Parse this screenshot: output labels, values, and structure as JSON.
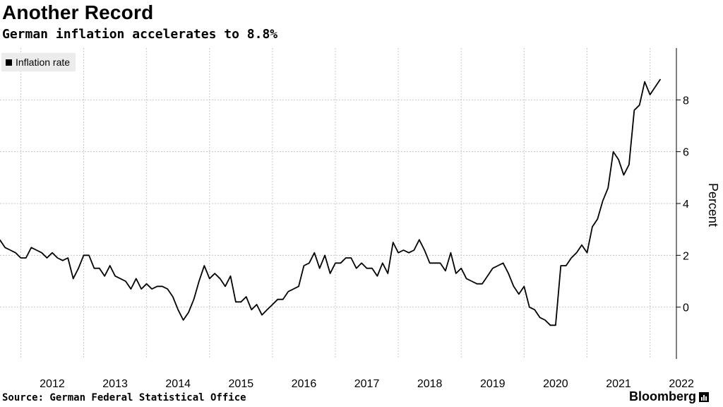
{
  "title": "Another Record",
  "subtitle": "German inflation accelerates to 8.8%",
  "legend": {
    "label": "Inflation rate"
  },
  "source": "Source: German Federal Statistical Office",
  "brand": "Bloomberg",
  "colors": {
    "line": "#000000",
    "grid": "#c8c8c8",
    "legend_bg": "#ececec"
  },
  "chart_data": {
    "type": "line",
    "title": "Another Record",
    "subtitle": "German inflation accelerates to 8.8%",
    "ylabel": "Percent",
    "xlabel": "",
    "ylim": [
      -2,
      10
    ],
    "xlim": [
      2011.67,
      2022.42
    ],
    "y_ticks": [
      0,
      2,
      4,
      6,
      8
    ],
    "x_ticks": [
      "2012",
      "2013",
      "2014",
      "2015",
      "2016",
      "2017",
      "2018",
      "2019",
      "2020",
      "2021",
      "2022"
    ],
    "grid": true,
    "legend_position": "top-left",
    "series": [
      {
        "name": "Inflation rate",
        "start": "2011-09",
        "frequency": "monthly",
        "values": [
          2.6,
          2.3,
          2.2,
          2.1,
          1.9,
          1.9,
          2.3,
          2.2,
          2.1,
          1.9,
          2.1,
          1.9,
          1.8,
          1.9,
          1.1,
          1.5,
          2.0,
          2.0,
          1.5,
          1.5,
          1.2,
          1.6,
          1.2,
          1.1,
          1.0,
          0.7,
          1.1,
          0.7,
          0.9,
          0.7,
          0.8,
          0.8,
          0.7,
          0.4,
          -0.1,
          -0.5,
          -0.2,
          0.3,
          1.0,
          1.6,
          1.1,
          1.3,
          1.1,
          0.8,
          1.2,
          0.2,
          0.2,
          0.4,
          -0.1,
          0.1,
          -0.3,
          -0.1,
          0.1,
          0.3,
          0.3,
          0.6,
          0.7,
          0.8,
          1.6,
          1.7,
          2.1,
          1.5,
          2.0,
          1.3,
          1.7,
          1.7,
          1.9,
          1.9,
          1.5,
          1.7,
          1.5,
          1.5,
          1.2,
          1.7,
          1.3,
          2.5,
          2.1,
          2.2,
          2.1,
          2.2,
          2.6,
          2.2,
          1.7,
          1.7,
          1.7,
          1.4,
          2.1,
          1.3,
          1.5,
          1.1,
          1.0,
          0.9,
          0.9,
          1.2,
          1.5,
          1.6,
          1.7,
          1.3,
          0.8,
          0.5,
          0.8,
          0.0,
          -0.1,
          -0.4,
          -0.5,
          -0.7,
          -0.7,
          1.6,
          1.6,
          1.9,
          2.1,
          2.4,
          2.1,
          3.1,
          3.4,
          4.1,
          4.6,
          6.0,
          5.7,
          5.1,
          5.5,
          7.6,
          7.8,
          8.7,
          8.2,
          8.5,
          8.8
        ]
      }
    ]
  }
}
